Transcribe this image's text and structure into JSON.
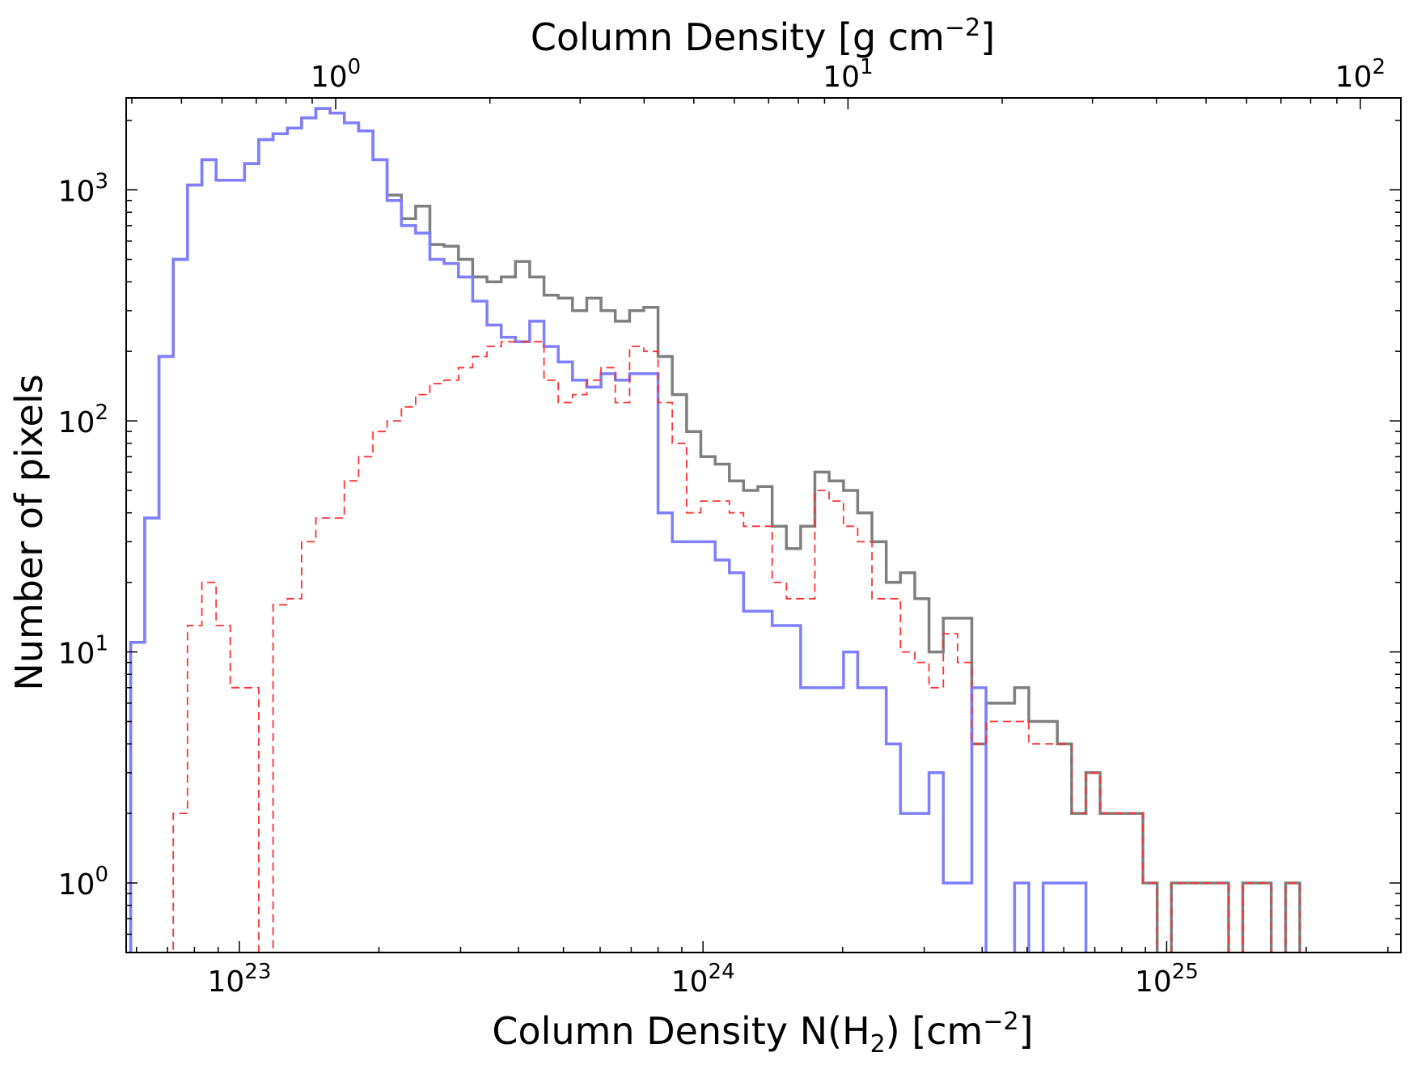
{
  "chart_data": {
    "type": "histogram",
    "title": "",
    "xlabel": "Column Density N(H",
    "xlabel_sub": "2",
    "xlabel_tail": ") [cm",
    "xlabel_sup": "−2",
    "xlabel_end": "]",
    "ylabel": "Number of pixels",
    "top_xlabel": "Column Density [g cm",
    "top_xlabel_sup": "−2",
    "top_xlabel_end": "]",
    "x_scale": "log",
    "y_scale": "log",
    "xlim": [
      5.7e+22,
      3.2e+25
    ],
    "ylim": [
      0.5,
      2500
    ],
    "top_xlim": [
      0.39,
      120
    ],
    "x_ticks": [
      {
        "value": 1e+23,
        "base": "10",
        "exp": "23"
      },
      {
        "value": 1e+24,
        "base": "10",
        "exp": "24"
      },
      {
        "value": 1e+25,
        "base": "10",
        "exp": "25"
      }
    ],
    "y_ticks": [
      {
        "value": 1,
        "base": "10",
        "exp": "0"
      },
      {
        "value": 10,
        "base": "10",
        "exp": "1"
      },
      {
        "value": 100,
        "base": "10",
        "exp": "2"
      },
      {
        "value": 1000,
        "base": "10",
        "exp": "3"
      }
    ],
    "top_ticks": [
      {
        "value": 1,
        "base": "10",
        "exp": "0"
      },
      {
        "value": 10,
        "base": "10",
        "exp": "1"
      },
      {
        "value": 100,
        "base": "10",
        "exp": "2"
      }
    ],
    "grid": false,
    "legend": "none",
    "bin_edges": [
      5.83e+22,
      6.25e+22,
      6.71e+22,
      7.2e+22,
      7.73e+22,
      8.3e+22,
      8.91e+22,
      9.56e+22,
      1.026e+23,
      1.101e+23,
      1.182e+23,
      1.269e+23,
      1.362e+23,
      1.462e+23,
      1.569e+23,
      1.684e+23,
      1.808e+23,
      1.941e+23,
      2.083e+23,
      2.236e+23,
      2.4e+23,
      2.576e+23,
      2.765e+23,
      2.968e+23,
      3.186e+23,
      3.42e+23,
      3.671e+23,
      3.94e+23,
      4.229e+23,
      4.54e+23,
      4.873e+23,
      5.23e+23,
      5.614e+23,
      6.026e+23,
      6.468e+23,
      6.943e+23,
      7.452e+23,
      7.999e+23,
      8.586e+23,
      9.216e+23,
      9.892e+23,
      1.062e+24,
      1.14e+24,
      1.223e+24,
      1.313e+24,
      1.41e+24,
      1.513e+24,
      1.624e+24,
      1.743e+24,
      1.871e+24,
      2.009e+24,
      2.156e+24,
      2.314e+24,
      2.484e+24,
      2.666e+24,
      2.862e+24,
      3.072e+24,
      3.298e+24,
      3.54e+24,
      3.799e+24,
      4.078e+24,
      4.378e+24,
      4.699e+24,
      5.044e+24,
      5.414e+24,
      5.811e+24,
      6.238e+24,
      6.696e+24,
      7.187e+24,
      7.715e+24,
      8.281e+24,
      8.889e+24,
      9.541e+24,
      1.024e+25,
      1.099e+25,
      1.18e+25,
      1.267e+25,
      1.36e+25,
      1.459e+25,
      1.566e+25,
      1.681e+25,
      1.805e+25,
      1.937e+25,
      2.079e+25,
      2.232e+25,
      2.396e+25,
      2.572e+25,
      2.76e+25
    ],
    "series": [
      {
        "name": "",
        "color": "#7f7f7f",
        "style": "solid",
        "values": [
          11,
          38,
          190,
          500,
          1050,
          1350,
          1100,
          1100,
          1300,
          1650,
          1750,
          1850,
          2050,
          2250,
          2150,
          1950,
          1800,
          1350,
          950,
          750,
          850,
          580,
          570,
          500,
          420,
          400,
          420,
          490,
          420,
          350,
          340,
          300,
          340,
          300,
          270,
          300,
          310,
          190,
          130,
          90,
          70,
          65,
          55,
          50,
          52,
          35,
          28,
          35,
          60,
          55,
          50,
          40,
          30,
          20,
          22,
          17,
          10,
          14,
          14,
          4,
          6,
          6,
          7,
          5,
          5,
          4,
          2,
          3,
          2,
          2,
          2,
          1,
          0,
          1,
          1,
          1,
          1,
          0,
          1,
          1,
          0,
          1,
          0,
          0,
          0,
          0,
          0
        ]
      },
      {
        "name": "",
        "color": "#7f7fff",
        "style": "solid",
        "values": [
          11,
          38,
          190,
          500,
          1050,
          1350,
          1100,
          1100,
          1300,
          1650,
          1750,
          1850,
          2050,
          2250,
          2150,
          1950,
          1800,
          1350,
          900,
          700,
          650,
          500,
          480,
          420,
          330,
          260,
          230,
          220,
          270,
          210,
          180,
          150,
          140,
          160,
          150,
          160,
          160,
          40,
          30,
          30,
          30,
          25,
          22,
          15,
          15,
          13,
          13,
          7,
          7,
          7,
          10,
          7,
          7,
          4,
          2,
          2,
          3,
          1,
          1,
          7,
          0,
          0,
          1,
          0,
          1,
          1,
          1,
          0,
          0,
          0,
          0,
          0,
          0,
          0,
          0,
          0,
          0,
          0,
          0,
          0,
          0,
          0,
          0,
          0,
          0,
          0,
          0
        ]
      },
      {
        "name": "",
        "color": "#ff3333",
        "style": "dashed",
        "values": [
          0,
          0,
          0,
          2,
          13,
          20,
          13,
          7,
          7,
          0,
          16,
          17,
          30,
          38,
          38,
          55,
          70,
          90,
          100,
          115,
          130,
          145,
          150,
          170,
          190,
          210,
          220,
          220,
          220,
          150,
          120,
          130,
          150,
          170,
          120,
          210,
          200,
          120,
          80,
          40,
          45,
          45,
          40,
          35,
          35,
          20,
          17,
          17,
          50,
          45,
          35,
          30,
          17,
          17,
          10,
          9,
          7,
          12,
          9,
          4,
          5,
          5,
          5,
          4,
          4,
          4,
          2,
          3,
          2,
          2,
          2,
          1,
          0,
          1,
          1,
          1,
          1,
          0,
          1,
          1,
          0,
          1,
          0,
          0,
          0,
          0,
          0
        ]
      }
    ]
  }
}
